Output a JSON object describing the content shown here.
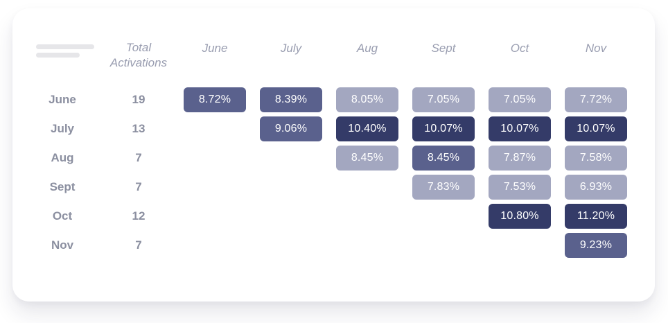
{
  "chart_data": {
    "type": "heatmap",
    "description": "Cohort retention style table: monthly cohorts vs months, percentage cells shaded by value",
    "column_headers": {
      "total": [
        "Total",
        "Activations"
      ],
      "months": [
        "June",
        "July",
        "Aug",
        "Sept",
        "Oct",
        "Nov"
      ]
    },
    "tier_colors": {
      "light": "#A3A7C0",
      "mid": "#5A618D",
      "dark": "#343B68"
    },
    "rows": [
      {
        "label": "June",
        "total": "19",
        "cells": [
          {
            "col": 0,
            "value": "8.72%",
            "tier": "mid"
          },
          {
            "col": 1,
            "value": "8.39%",
            "tier": "mid"
          },
          {
            "col": 2,
            "value": "8.05%",
            "tier": "light"
          },
          {
            "col": 3,
            "value": "7.05%",
            "tier": "light"
          },
          {
            "col": 4,
            "value": "7.05%",
            "tier": "light"
          },
          {
            "col": 5,
            "value": "7.72%",
            "tier": "light"
          }
        ]
      },
      {
        "label": "July",
        "total": "13",
        "cells": [
          {
            "col": 1,
            "value": "9.06%",
            "tier": "mid"
          },
          {
            "col": 2,
            "value": "10.40%",
            "tier": "dark"
          },
          {
            "col": 3,
            "value": "10.07%",
            "tier": "dark"
          },
          {
            "col": 4,
            "value": "10.07%",
            "tier": "dark"
          },
          {
            "col": 5,
            "value": "10.07%",
            "tier": "dark"
          }
        ]
      },
      {
        "label": "Aug",
        "total": "7",
        "cells": [
          {
            "col": 2,
            "value": "8.45%",
            "tier": "light"
          },
          {
            "col": 3,
            "value": "8.45%",
            "tier": "mid"
          },
          {
            "col": 4,
            "value": "7.87%",
            "tier": "light"
          },
          {
            "col": 5,
            "value": "7.58%",
            "tier": "light"
          }
        ]
      },
      {
        "label": "Sept",
        "total": "7",
        "cells": [
          {
            "col": 3,
            "value": "7.83%",
            "tier": "light"
          },
          {
            "col": 4,
            "value": "7.53%",
            "tier": "light"
          },
          {
            "col": 5,
            "value": "6.93%",
            "tier": "light"
          }
        ]
      },
      {
        "label": "Oct",
        "total": "12",
        "cells": [
          {
            "col": 4,
            "value": "10.80%",
            "tier": "dark"
          },
          {
            "col": 5,
            "value": "11.20%",
            "tier": "dark"
          }
        ]
      },
      {
        "label": "Nov",
        "total": "7",
        "cells": [
          {
            "col": 5,
            "value": "9.23%",
            "tier": "mid"
          }
        ]
      }
    ]
  }
}
